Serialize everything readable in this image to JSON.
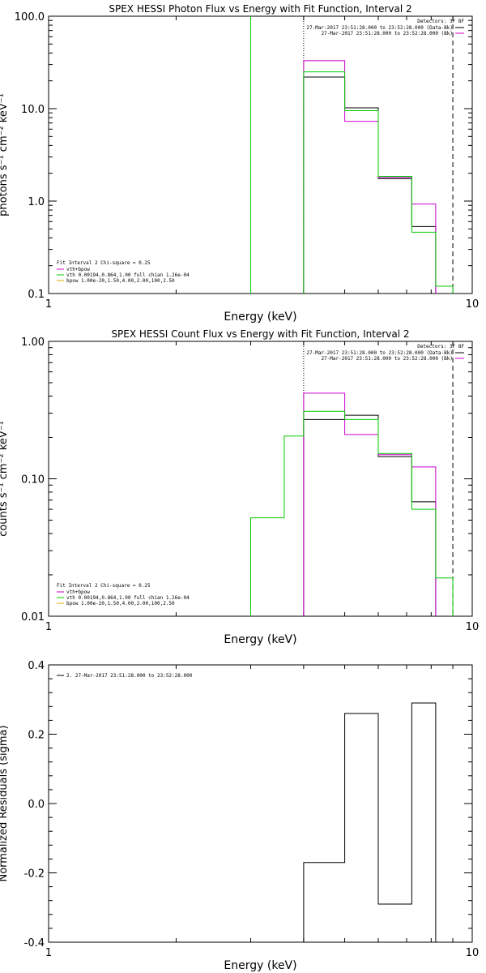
{
  "colors": {
    "data": "#000000",
    "total": "#cc00cc",
    "vth": "#00cc00",
    "bpow": "#e0b000"
  },
  "chart_data": [
    {
      "type": "line",
      "title": "SPEX HESSI Photon Flux vs Energy with Fit Function, Interval 2",
      "xlabel": "Energy (keV)",
      "ylabel": "photons s⁻¹ cm⁻² keV⁻¹",
      "xscale": "log",
      "yscale": "log",
      "xlim": [
        1,
        10
      ],
      "ylim": [
        0.1,
        100
      ],
      "xticks": [
        {
          "v": 1,
          "label": "1"
        },
        {
          "v": 10,
          "label": "10"
        }
      ],
      "yticks": [
        {
          "v": 100,
          "label": "100.0"
        },
        {
          "v": 10,
          "label": "10.0"
        },
        {
          "v": 1,
          "label": "1.0"
        },
        {
          "v": 0.1,
          "label": "0.1"
        }
      ],
      "header": {
        "label": "Detectors: 3F 8F",
        "lines": [
          "27-Mar-2017 23:51:28.000 to 23:52:28.000 (Data-Bk)",
          "27-Mar-2017 23:51:28.000 to 23:52:28.000 (Bk)"
        ]
      },
      "legend": {
        "position": "bottom-left",
        "title": "Fit Interval  2   Chi-square = 0.25",
        "entries": [
          "vth+bpow",
          "vth 0.00194,0.864,1.00  full chian 1.26e-04",
          "bpow 1.00e-20,1.50,4.00,2.00,100,2.50"
        ]
      },
      "vlines": [
        {
          "x": 3.0,
          "style": "solid",
          "color": "vth"
        },
        {
          "x": 4.0,
          "style": "dotted",
          "color": "data"
        },
        {
          "x": 9.0,
          "style": "dashed",
          "color": "data"
        }
      ],
      "edges": [
        4.0,
        5.0,
        6.0,
        7.2,
        8.2,
        9.0,
        10.0
      ],
      "series": [
        {
          "name": "Data-Bk",
          "color": "data",
          "values": [
            22,
            10.2,
            1.75,
            0.53
          ]
        },
        {
          "name": "vth+bpow",
          "color": "total",
          "values": [
            33,
            7.3,
            1.8,
            0.93
          ]
        },
        {
          "name": "vth",
          "color": "vth",
          "values": [
            25,
            9.5,
            1.85,
            0.46,
            0.12
          ]
        }
      ]
    },
    {
      "type": "line",
      "title": "SPEX HESSI Count Flux vs Energy with Fit Function, Interval 2",
      "xlabel": "Energy (keV)",
      "ylabel": "counts s⁻¹ cm⁻² keV⁻¹",
      "xscale": "log",
      "yscale": "log",
      "xlim": [
        1,
        10
      ],
      "ylim": [
        0.01,
        1
      ],
      "xticks": [
        {
          "v": 1,
          "label": "1"
        },
        {
          "v": 10,
          "label": "10"
        }
      ],
      "yticks": [
        {
          "v": 1,
          "label": "1.00"
        },
        {
          "v": 0.1,
          "label": "0.10"
        },
        {
          "v": 0.01,
          "label": "0.01"
        }
      ],
      "header": {
        "label": "Detectors: 3F 8F",
        "lines": [
          "27-Mar-2017 23:51:28.000 to 23:52:28.000 (Data-Bk)",
          "27-Mar-2017 23:51:28.000 to 23:52:28.000 (Bk)"
        ]
      },
      "legend": {
        "position": "bottom-left",
        "title": "Fit Interval  2   Chi-square = 0.25",
        "entries": [
          "vth+bpow",
          "vth 0.00194,0.864,1.00  full chian 1.26e-04",
          "bpow 1.00e-20,1.50,4.00,2.00,100,2.50"
        ]
      },
      "vlines": [
        {
          "x": 4.0,
          "style": "dotted",
          "color": "data"
        },
        {
          "x": 9.0,
          "style": "dashed",
          "color": "data"
        }
      ],
      "edges": [
        3.0,
        3.6,
        4.0,
        5.0,
        6.0,
        7.2,
        8.2,
        9.0,
        10.0
      ],
      "series": [
        {
          "name": "Data-Bk",
          "color": "data",
          "start": 2,
          "values": [
            0.27,
            0.29,
            0.145,
            0.068
          ]
        },
        {
          "name": "vth+bpow",
          "color": "total",
          "start": 2,
          "values": [
            0.42,
            0.21,
            0.15,
            0.122
          ]
        },
        {
          "name": "vth",
          "color": "vth",
          "start": 0,
          "values": [
            0.052,
            0.205,
            0.31,
            0.27,
            0.153,
            0.06,
            0.019
          ]
        }
      ]
    },
    {
      "type": "line",
      "title": "",
      "xlabel": "Energy (keV)",
      "ylabel": "Normalized Residuals (sigma)",
      "xscale": "log",
      "yscale": "linear",
      "xlim": [
        1,
        10
      ],
      "ylim": [
        -0.4,
        0.4
      ],
      "xticks": [
        {
          "v": 1,
          "label": "1"
        },
        {
          "v": 10,
          "label": "10"
        }
      ],
      "yticks": [
        {
          "v": 0.4,
          "label": "0.4"
        },
        {
          "v": 0.2,
          "label": "0.2"
        },
        {
          "v": 0.0,
          "label": "0.0"
        },
        {
          "v": -0.2,
          "label": "-0.2"
        },
        {
          "v": -0.4,
          "label": "-0.4"
        }
      ],
      "legend": {
        "position": "top-left",
        "entries": [
          "2. 27-Mar-2017 23:51:28.000 to 23:52:28.000"
        ]
      },
      "edges": [
        4.0,
        5.0,
        6.0,
        7.2,
        8.2,
        9.0
      ],
      "series": [
        {
          "name": "residuals",
          "color": "data",
          "values": [
            -0.17,
            0.26,
            -0.29,
            0.29
          ]
        }
      ]
    }
  ]
}
